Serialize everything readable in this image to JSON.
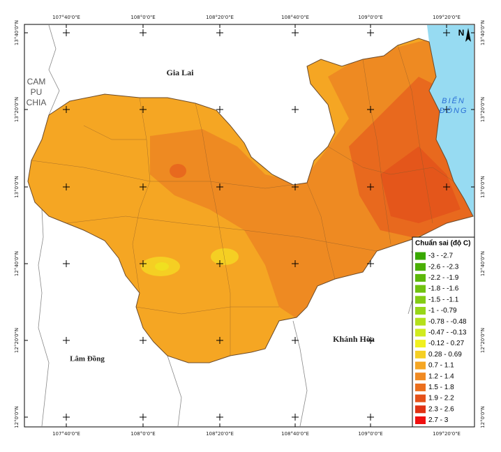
{
  "map": {
    "lon_labels": [
      "107°40'0\"E",
      "108°0'0\"E",
      "108°20'0\"E",
      "108°40'0\"E",
      "109°0'0\"E",
      "109°20'0\"E"
    ],
    "lat_labels": [
      "13°40'0\"N",
      "13°20'0\"N",
      "13°0'0\"N",
      "12°40'0\"N",
      "12°20'0\"N",
      "12°0'0\"N"
    ],
    "regions": [
      {
        "label": "Gia Lai"
      },
      {
        "label": "CAM PU CHIA"
      },
      {
        "label": "BIỂN ĐÔNG"
      },
      {
        "label": "Khánh Hòa"
      },
      {
        "label": "Lâm Đồng"
      }
    ],
    "north": "N",
    "legend": {
      "title": "Chuẩn sai (độ C)",
      "items": [
        {
          "label": "-3 - -2.7",
          "color": "#38a800"
        },
        {
          "label": "-2.6 - -2.3",
          "color": "#4aaf05"
        },
        {
          "label": "-2.2 - -1.9",
          "color": "#5cb80a"
        },
        {
          "label": "-1.8 - -1.6",
          "color": "#70c20f"
        },
        {
          "label": "-1.5 - -1.1",
          "color": "#84cc14"
        },
        {
          "label": "-1 - -0.79",
          "color": "#98d619"
        },
        {
          "label": "-0.78 - -0.48",
          "color": "#b4e01c"
        },
        {
          "label": "-0.47 - -0.13",
          "color": "#d0eb1f"
        },
        {
          "label": "-0.12 - 0.27",
          "color": "#f0f01f"
        },
        {
          "label": "0.28 - 0.69",
          "color": "#f5cf23"
        },
        {
          "label": "0.7 - 1.1",
          "color": "#f5a623"
        },
        {
          "label": "1.2 - 1.4",
          "color": "#f08a22"
        },
        {
          "label": "1.5 - 1.8",
          "color": "#eb6f1e"
        },
        {
          "label": "1.9 - 2.2",
          "color": "#e5511a"
        },
        {
          "label": "2.3 - 2.6",
          "color": "#e03214"
        },
        {
          "label": "2.7 - 3",
          "color": "#f01010"
        }
      ]
    }
  }
}
